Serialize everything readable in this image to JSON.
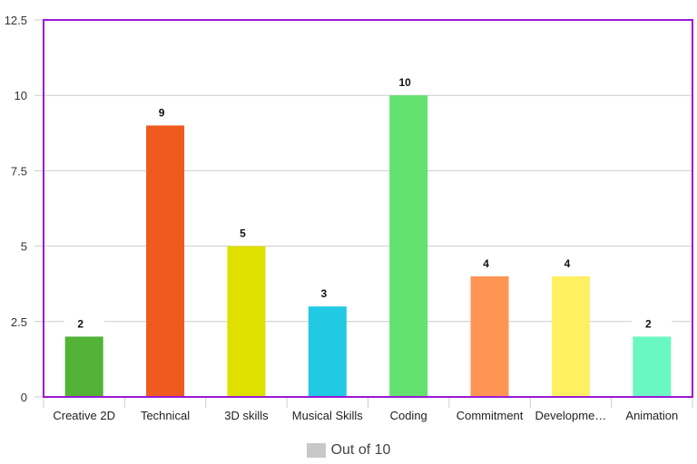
{
  "chart_data": {
    "type": "bar",
    "categories": [
      "Creative 2D",
      "Technical",
      "3D skills",
      "Musical Skills",
      "Coding",
      "Commitment",
      "Developme…",
      "Animation"
    ],
    "series": [
      {
        "name": "Out of 10",
        "values": [
          2,
          9,
          5,
          3,
          10,
          4,
          4,
          2
        ]
      }
    ],
    "bar_colors": [
      "#52b336",
      "#ef5a1f",
      "#dfe000",
      "#22c9e2",
      "#63e26f",
      "#ff9553",
      "#fff062",
      "#6af7c2"
    ],
    "ylim": [
      0,
      12.5
    ],
    "yticks": [
      "0",
      "2.5",
      "5",
      "7.5",
      "10",
      "12.5"
    ],
    "grid": true,
    "data_labels": true,
    "legend": "bottom",
    "frame_color": "#9a18d6",
    "xlabel": "",
    "ylabel": "",
    "title": ""
  }
}
